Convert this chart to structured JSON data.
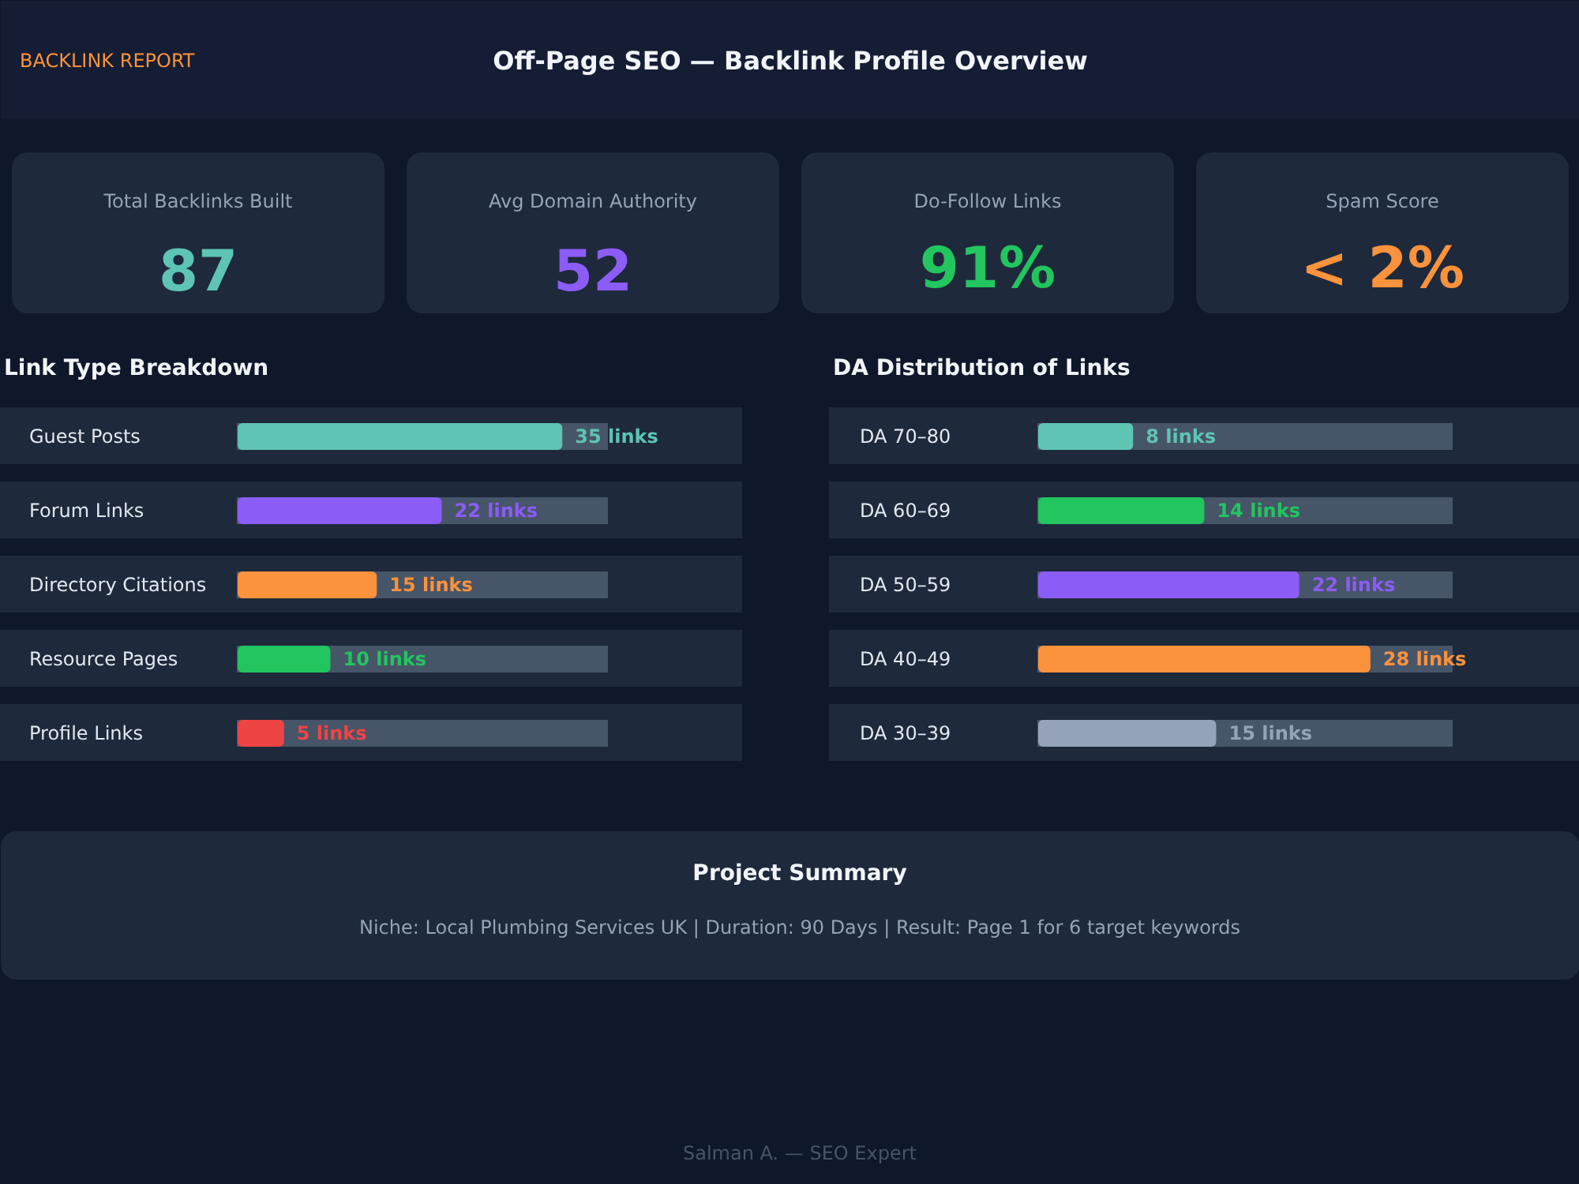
{
  "chart_data": [
    {
      "type": "other",
      "title": "Off-Page SEO — Backlink Profile Overview",
      "annotations": [
        "BACKLINK REPORT"
      ]
    },
    {
      "type": "other",
      "title": "Total Backlinks Built",
      "annotations": [
        "87"
      ],
      "colors": [
        "#5ec4b4"
      ]
    },
    {
      "type": "other",
      "title": "Avg Domain Authority",
      "annotations": [
        "52"
      ],
      "colors": [
        "#8b5cf6"
      ]
    },
    {
      "type": "other",
      "title": "Do-Follow Links",
      "annotations": [
        "91%"
      ],
      "colors": [
        "#22c55e"
      ]
    },
    {
      "type": "other",
      "title": "Spam Score",
      "annotations": [
        "< 2%"
      ],
      "colors": [
        "#fb923c"
      ]
    },
    {
      "type": "bar",
      "orientation": "horizontal",
      "title": "Link Type Breakdown",
      "tick_labels": false,
      "categories": [
        "Guest Posts",
        "Forum Links",
        "Directory Citations",
        "Resource Pages",
        "Profile Links"
      ],
      "values": [
        35,
        22,
        15,
        10,
        5
      ],
      "colors": [
        "#5ec4b4",
        "#8b5cf6",
        "#fb923c",
        "#22c55e",
        "#ef4444"
      ],
      "value_labels": [
        "35 links",
        "22 links",
        "15 links",
        "10 links",
        "5 links"
      ]
    },
    {
      "type": "bar",
      "orientation": "horizontal",
      "title": "DA Distribution of Links",
      "tick_labels": false,
      "categories": [
        "DA 70–80",
        "DA 60–69",
        "DA 50–59",
        "DA 40–49",
        "DA 30–39"
      ],
      "values": [
        8,
        14,
        22,
        28,
        15
      ],
      "colors": [
        "#5ec4b4",
        "#22c55e",
        "#8b5cf6",
        "#fb923c",
        "#94a3b8"
      ],
      "value_labels": [
        "8 links",
        "14 links",
        "22 links",
        "28 links",
        "15 links"
      ]
    },
    {
      "type": "other",
      "title": "Project Summary",
      "annotations": [
        "Niche: Local Plumbing Services UK | Duration: 90 Days | Result: Page 1 for 6 target keywords",
        "Salman A. — SEO Expert"
      ]
    }
  ]
}
